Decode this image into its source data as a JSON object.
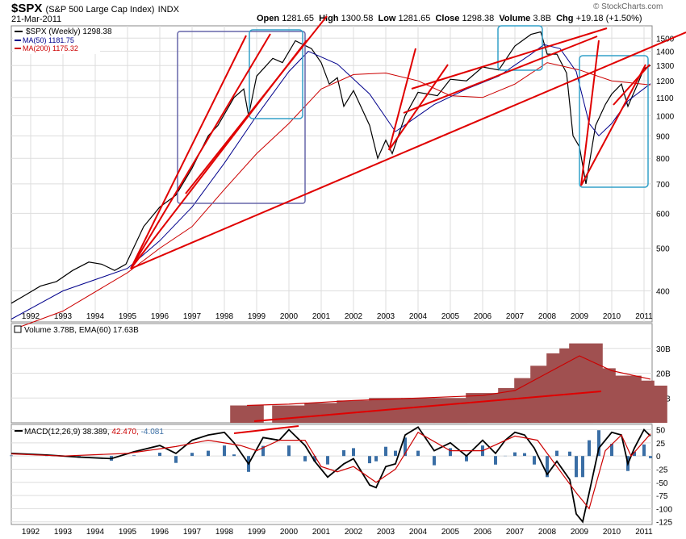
{
  "header": {
    "symbol": "$SPX",
    "description": "(S&P 500 Large Cap Index)",
    "exchange": "INDX",
    "date": "21-Mar-2011",
    "open_label": "Open",
    "open": "1281.65",
    "high_label": "High",
    "high": "1300.58",
    "low_label": "Low",
    "low": "1281.65",
    "close_label": "Close",
    "close": "1298.38",
    "volume_label": "Volume",
    "volume": "3.8B",
    "chg_label": "Chg",
    "chg": "+19.18 (+1.50%)",
    "brand": "© StockCharts.com"
  },
  "legend": {
    "price": "$SPX (Weekly) 1298.38",
    "ma50": "MA(50) 1181.75",
    "ma200": "MA(200) 1175.32",
    "volume": "Volume 3.78B, EMA(60) 17.63B",
    "macd_name": "MACD(12,26,9)",
    "macd_val": "38.389,",
    "macd_signal": "42.470,",
    "macd_hist": "-4.081"
  },
  "colors": {
    "price": "#000000",
    "ma50": "#00008b",
    "ma200": "#cc0000",
    "trendline": "#e00000",
    "box_purple": "#6666aa",
    "box_cyan": "#33a0c8",
    "volume_bar": "#a05050",
    "macd_hist": "#3a6ea5",
    "grid": "#dddddd"
  },
  "chart_data": [
    {
      "type": "line",
      "panel": "price",
      "scale": "log",
      "ylim": [
        340,
        1600
      ],
      "y_ticks": [
        400,
        500,
        600,
        700,
        800,
        900,
        1000,
        1100,
        1200,
        1300,
        1400,
        1500
      ],
      "x_ticks": [
        "1992",
        "1993",
        "1994",
        "1995",
        "1996",
        "1997",
        "1998",
        "1999",
        "2000",
        "2001",
        "2002",
        "2003",
        "2004",
        "2005",
        "2006",
        "2007",
        "2008",
        "2009",
        "2010",
        "2011"
      ],
      "xlim": [
        1991.4,
        2011.25
      ],
      "series": [
        {
          "name": "$SPX (Weekly)",
          "x": [
            1991.4,
            1991.8,
            1992.3,
            1992.8,
            1993.3,
            1993.8,
            1994.2,
            1994.6,
            1994.95,
            1995.5,
            1996.0,
            1996.5,
            1997.0,
            1997.5,
            1997.8,
            1998.3,
            1998.6,
            1998.75,
            1999.0,
            1999.5,
            1999.8,
            2000.2,
            2000.7,
            2001.0,
            2001.25,
            2001.5,
            2001.7,
            2002.0,
            2002.5,
            2002.75,
            2003.0,
            2003.2,
            2003.6,
            2004.0,
            2004.6,
            2005.0,
            2005.5,
            2006.0,
            2006.5,
            2007.0,
            2007.5,
            2007.8,
            2008.0,
            2008.3,
            2008.6,
            2008.8,
            2009.0,
            2009.2,
            2009.5,
            2009.8,
            2010.0,
            2010.3,
            2010.5,
            2010.8,
            2011.0,
            2011.2
          ],
          "values": [
            375,
            390,
            410,
            420,
            445,
            465,
            460,
            445,
            460,
            560,
            620,
            660,
            760,
            900,
            950,
            1100,
            1150,
            1000,
            1230,
            1350,
            1320,
            1480,
            1420,
            1320,
            1180,
            1220,
            1050,
            1140,
            950,
            800,
            880,
            820,
            1000,
            1130,
            1110,
            1210,
            1200,
            1290,
            1270,
            1440,
            1530,
            1550,
            1380,
            1380,
            1250,
            900,
            850,
            700,
            950,
            1060,
            1120,
            1180,
            1050,
            1180,
            1280,
            1300
          ]
        },
        {
          "name": "MA(50)",
          "x": [
            1991.4,
            1993.0,
            1995.0,
            1996.0,
            1997.0,
            1998.0,
            1999.0,
            2000.0,
            2000.6,
            2001.5,
            2002.5,
            2003.3,
            2004.5,
            2005.5,
            2006.5,
            2007.5,
            2007.9,
            2008.4,
            2008.9,
            2009.3,
            2009.6,
            2010.0,
            2010.5,
            2011.2
          ],
          "values": [
            345,
            400,
            450,
            520,
            620,
            780,
            1000,
            1260,
            1400,
            1310,
            1120,
            920,
            1060,
            1150,
            1230,
            1380,
            1450,
            1420,
            1260,
            960,
            900,
            960,
            1080,
            1182
          ]
        },
        {
          "name": "MA(200)",
          "x": [
            1991.6,
            1993.0,
            1995.0,
            1996.0,
            1997.0,
            1998.0,
            1999.0,
            2000.0,
            2001.0,
            2002.0,
            2003.0,
            2004.0,
            2005.0,
            2006.0,
            2007.0,
            2008.0,
            2009.0,
            2010.0,
            2011.2
          ],
          "values": [
            330,
            360,
            440,
            500,
            560,
            680,
            820,
            960,
            1150,
            1240,
            1250,
            1200,
            1110,
            1100,
            1180,
            1320,
            1270,
            1200,
            1175
          ]
        }
      ]
    },
    {
      "type": "bar",
      "panel": "volume",
      "ylim": [
        0,
        40
      ],
      "y_ticks": [
        10,
        20,
        30
      ],
      "y_tick_labels": [
        "10B",
        "20B",
        "30B"
      ],
      "xlim": [
        1998.7,
        2011.25
      ],
      "series": [
        {
          "name": "Volume",
          "x": [
            1998.7,
            2000.0,
            2001.0,
            2002.0,
            2003.0,
            2004.0,
            2005.0,
            2006.0,
            2007.0,
            2007.5,
            2008.0,
            2008.5,
            2008.9,
            2009.2,
            2009.6,
            2010.0,
            2010.4,
            2010.8,
            2011.2
          ],
          "values": [
            7,
            7,
            8,
            9,
            10,
            10,
            10,
            12,
            14,
            18,
            23,
            28,
            30,
            32,
            22,
            19,
            19,
            17,
            15
          ]
        },
        {
          "name": "EMA(60)",
          "x": [
            1998.7,
            2000.0,
            2002.0,
            2004.0,
            2006.0,
            2007.0,
            2008.0,
            2009.0,
            2010.0,
            2011.2
          ],
          "values": [
            7,
            7.5,
            9,
            10,
            11,
            13,
            20,
            27,
            21,
            17.6
          ]
        }
      ]
    },
    {
      "type": "line",
      "panel": "macd",
      "ylim": [
        -130,
        60
      ],
      "y_ticks": [
        50,
        25,
        0,
        -25,
        -50,
        -75,
        -100,
        -125
      ],
      "series": [
        {
          "name": "MACD",
          "x": [
            1991.4,
            1992.5,
            1993.5,
            1994.5,
            1995.2,
            1996.0,
            1996.5,
            1997.0,
            1997.5,
            1998.0,
            1998.3,
            1998.75,
            1999.2,
            1999.7,
            2000.0,
            2000.5,
            2000.8,
            2001.2,
            2001.7,
            2002.0,
            2002.5,
            2002.7,
            2003.0,
            2003.3,
            2003.6,
            2004.0,
            2004.5,
            2005.0,
            2005.5,
            2006.0,
            2006.4,
            2006.7,
            2007.0,
            2007.3,
            2007.6,
            2008.0,
            2008.3,
            2008.7,
            2008.9,
            2009.1,
            2009.3,
            2009.6,
            2010.0,
            2010.3,
            2010.5,
            2010.7,
            2011.0,
            2011.2
          ],
          "values": [
            5,
            2,
            -2,
            -5,
            8,
            20,
            5,
            30,
            40,
            45,
            25,
            -15,
            35,
            30,
            50,
            20,
            -10,
            -40,
            -15,
            -5,
            -55,
            -60,
            -20,
            -15,
            40,
            55,
            10,
            25,
            0,
            30,
            5,
            30,
            45,
            40,
            15,
            -35,
            -10,
            -45,
            -110,
            -125,
            -70,
            15,
            45,
            40,
            -15,
            15,
            50,
            38
          ]
        },
        {
          "name": "Signal",
          "x": [
            1991.4,
            1993.0,
            1995.0,
            1996.5,
            1997.5,
            1998.5,
            1999.0,
            1999.7,
            2000.5,
            2001.0,
            2001.5,
            2002.0,
            2002.7,
            2003.3,
            2004.0,
            2005.0,
            2006.0,
            2007.0,
            2007.7,
            2008.3,
            2008.9,
            2009.3,
            2009.8,
            2010.3,
            2010.6,
            2011.2
          ],
          "values": [
            4,
            0,
            5,
            18,
            30,
            20,
            10,
            30,
            30,
            -20,
            -30,
            -20,
            -50,
            -25,
            45,
            10,
            10,
            38,
            30,
            -20,
            -70,
            -100,
            10,
            40,
            0,
            42
          ]
        }
      ]
    }
  ]
}
